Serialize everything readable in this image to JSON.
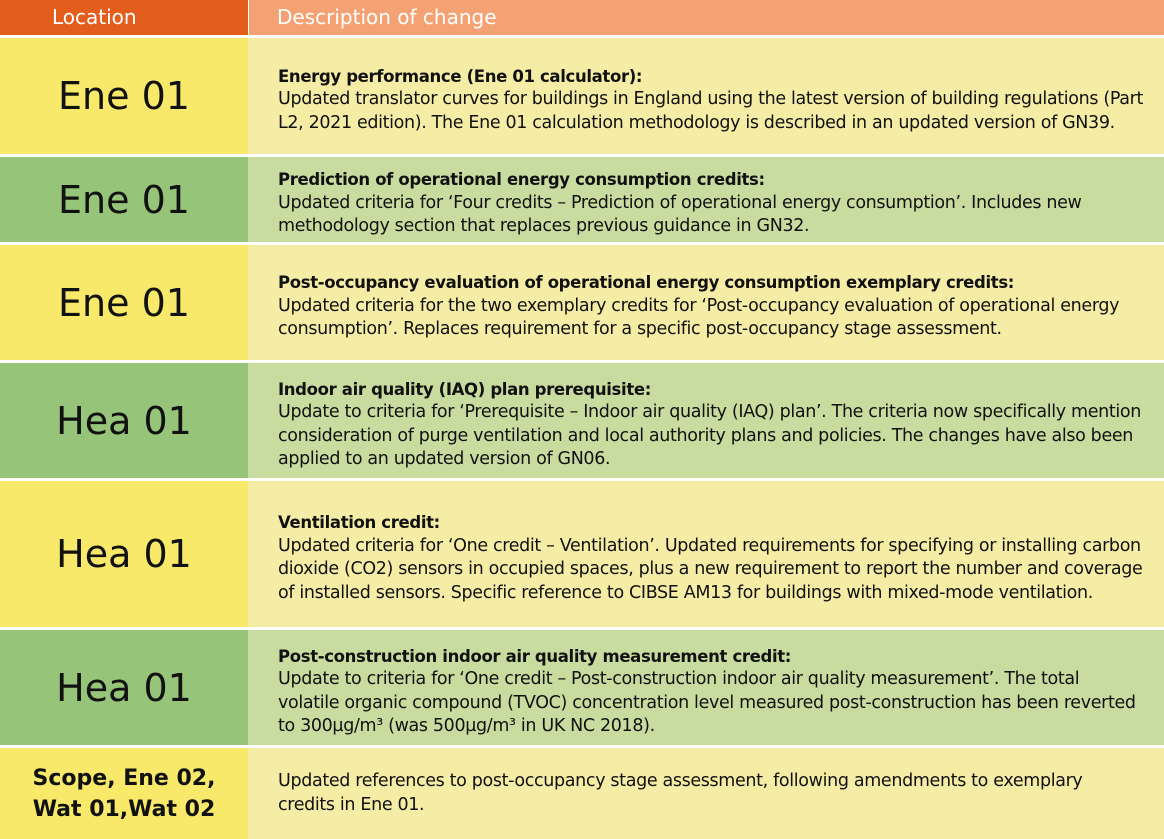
{
  "header": {
    "location": "Location",
    "description": "Description of change"
  },
  "rows": [
    {
      "location": "Ene 01",
      "title": "Energy performance (Ene 01 calculator):",
      "body": "Updated translator curves for buildings in England using the latest version of building regulations (Part L2, 2021 edition). The Ene 01 calculation methodology is described in an updated version of GN39."
    },
    {
      "location": "Ene 01",
      "title": "Prediction of operational energy consumption credits:",
      "body": "Updated criteria for ‘Four credits – Prediction of operational energy consumption’. Includes new methodology section that replaces previous guidance in GN32."
    },
    {
      "location": "Ene 01",
      "title": "Post-occupancy evaluation of operational energy consumption exemplary credits:",
      "body": "Updated criteria for the two exemplary credits for ‘Post-occupancy evaluation of operational energy consumption’. Replaces requirement for a specific post-occupancy stage assessment."
    },
    {
      "location": "Hea 01",
      "title": "Indoor air quality (IAQ) plan prerequisite:",
      "body": "Update to criteria for ‘Prerequisite – Indoor air quality (IAQ) plan’. The criteria now specifically mention consideration of purge ventilation and local authority plans and policies. The changes have also been applied to an updated version of GN06."
    },
    {
      "location": "Hea 01",
      "title": "Ventilation credit:",
      "body": "Updated criteria for ‘One credit – Ventilation’. Updated requirements for specifying or installing carbon dioxide (CO2) sensors in occupied spaces, plus a new requirement to report the number and coverage of installed sensors. Specific reference to CIBSE AM13 for buildings with mixed-mode ventilation."
    },
    {
      "location": "Hea 01",
      "title": "Post-construction indoor air quality measurement credit:",
      "body": "Update to criteria for ‘One credit – Post-construction indoor air quality measurement’. The total volatile organic compound (TVOC) concentration level measured post-construction has been reverted to 300µg/m³ (was 500µg/m³ in UK NC 2018)."
    },
    {
      "location": "Scope, Ene 02,\nWat 01,Wat 02",
      "title": "",
      "body": "Updated references to post-occupancy stage assessment, following amendments to exemplary credits in Ene 01."
    }
  ]
}
